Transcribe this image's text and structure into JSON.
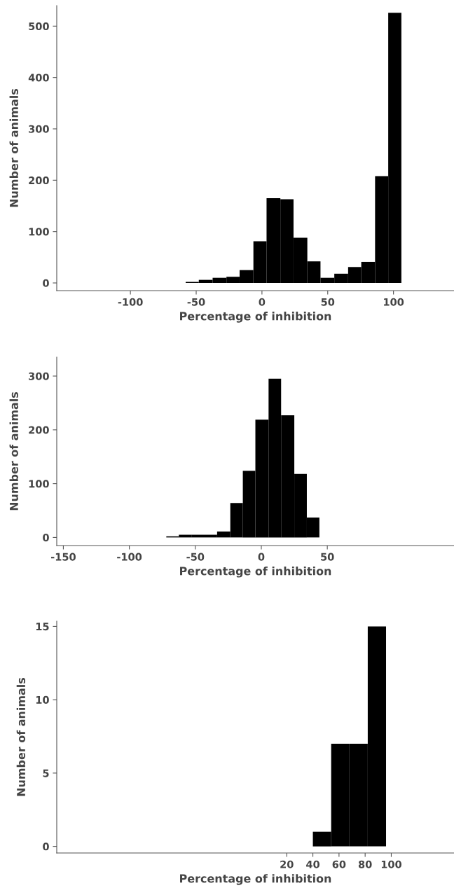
{
  "chart_data": [
    {
      "type": "histogram",
      "xlabel": "Percentage of inhibition",
      "ylabel": "Number of animals",
      "color": "#000000",
      "bins": [
        -58,
        -48,
        -37.5,
        -27,
        -17,
        -6.5,
        3.5,
        14,
        24,
        34.5,
        44.5,
        55,
        65.5,
        75.5,
        86,
        96,
        106
      ],
      "values": [
        2,
        6,
        10,
        12,
        25,
        81,
        165,
        163,
        88,
        42,
        10,
        18,
        31,
        41,
        208,
        526
      ],
      "xlim": [
        -156,
        146
      ],
      "xticks": [
        -100,
        -50,
        0,
        50,
        100
      ],
      "ylim": [
        -15,
        540
      ],
      "yticks": [
        0,
        100,
        200,
        300,
        400,
        500
      ],
      "grid": false
    },
    {
      "type": "histogram",
      "xlabel": "Percentage of inhibition",
      "ylabel": "Number of animals",
      "color": "#000000",
      "bins": [
        -72,
        -62.5,
        -53,
        -43,
        -33.5,
        -23.5,
        -14,
        -4.5,
        5.5,
        15,
        25,
        34.5,
        44
      ],
      "values": [
        2,
        5,
        5,
        5,
        11,
        64,
        124,
        219,
        295,
        227,
        118,
        37
      ],
      "xlim": [
        -155,
        146
      ],
      "xticks": [
        -150,
        -100,
        -50,
        0,
        50
      ],
      "ylim": [
        -15,
        335
      ],
      "yticks": [
        0,
        100,
        200,
        300
      ],
      "grid": false
    },
    {
      "type": "histogram",
      "xlabel": "Percentage of inhibition",
      "ylabel": "Number of animals",
      "color": "#000000",
      "bins": [
        40,
        54,
        68,
        82,
        96
      ],
      "values": [
        1,
        7,
        7,
        15
      ],
      "xlim": [
        -156,
        148
      ],
      "xticks": [
        20,
        40,
        60,
        80,
        100
      ],
      "ylim": [
        -0.45,
        15.35
      ],
      "yticks": [
        0,
        5,
        10,
        15
      ],
      "grid": false
    }
  ]
}
